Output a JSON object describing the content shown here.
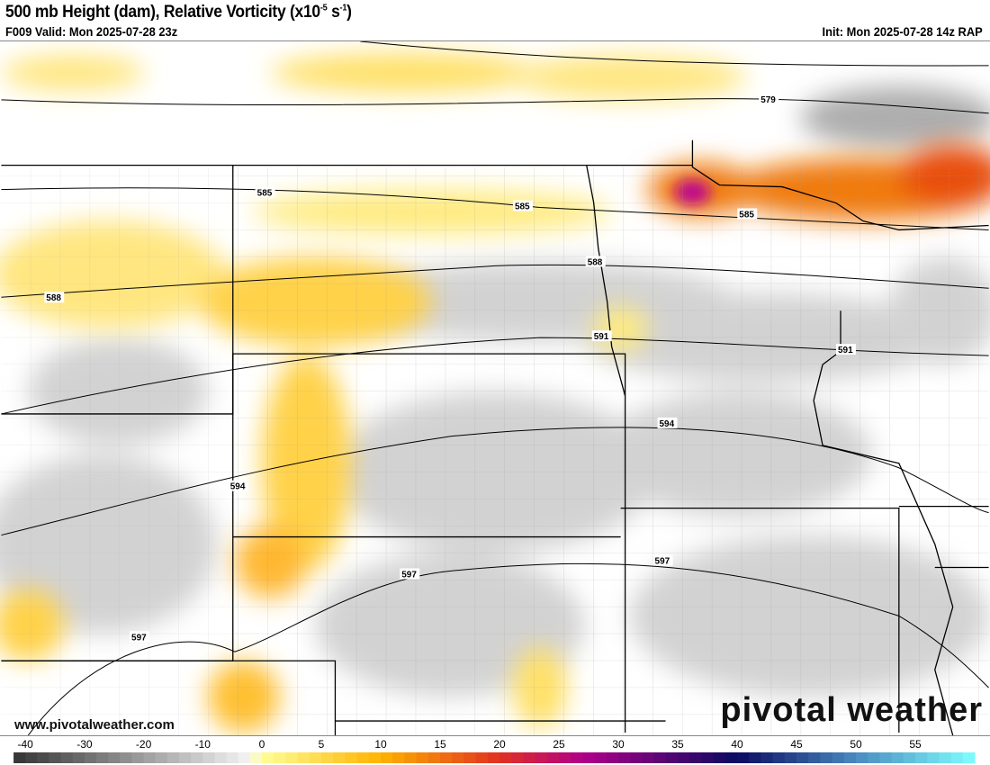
{
  "header": {
    "title_main": "500 mb Height (dam), Relative Vorticity (x10",
    "title_exp1": "-5",
    "title_mid": " s",
    "title_exp2": "-1",
    "title_end": ")",
    "valid": "F009 Valid: Mon 2025-07-28 23z",
    "init": "Init: Mon 2025-07-28 14z RAP"
  },
  "contour_labels": {
    "h579": "579",
    "h585a": "585",
    "h585b": "585",
    "h585c": "585",
    "h588a": "588",
    "h588b": "588",
    "h591a": "591",
    "h591b": "591",
    "h594a": "594",
    "h594b": "594",
    "h597a": "597",
    "h597b": "597",
    "h597c": "597"
  },
  "colorbar": {
    "ticks": [
      "-40",
      "-30",
      "-20",
      "-10",
      "0",
      "5",
      "10",
      "15",
      "20",
      "25",
      "30",
      "35",
      "40",
      "45",
      "50",
      "55"
    ],
    "range": [
      -42,
      60
    ],
    "stops": [
      {
        "v": -42,
        "c": "#333333"
      },
      {
        "v": -2,
        "c": "#f5f5f5"
      },
      {
        "v": 0,
        "c": "#ffff99"
      },
      {
        "v": 10,
        "c": "#ffb300"
      },
      {
        "v": 20,
        "c": "#e03020"
      },
      {
        "v": 27,
        "c": "#b0008a"
      },
      {
        "v": 40,
        "c": "#0a0a60"
      },
      {
        "v": 50,
        "c": "#4a8ac0"
      },
      {
        "v": 60,
        "c": "#80ffff"
      }
    ]
  },
  "watermark": {
    "url": "www.pivotalweather.com",
    "brand": "pivotal weather"
  }
}
